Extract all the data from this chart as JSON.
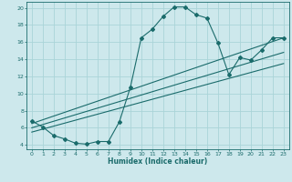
{
  "xlabel": "Humidex (Indice chaleur)",
  "bg_color": "#cde8ec",
  "line_color": "#1a6b6b",
  "grid_color": "#aad4d8",
  "xlim": [
    -0.5,
    23.5
  ],
  "ylim": [
    3.5,
    20.7
  ],
  "xticks": [
    0,
    1,
    2,
    3,
    4,
    5,
    6,
    7,
    8,
    9,
    10,
    11,
    12,
    13,
    14,
    15,
    16,
    17,
    18,
    19,
    20,
    21,
    22,
    23
  ],
  "yticks": [
    4,
    6,
    8,
    10,
    12,
    14,
    16,
    18,
    20
  ],
  "curve1_x": [
    0,
    1,
    2,
    3,
    4,
    5,
    6,
    7,
    8,
    9,
    10,
    11,
    12,
    13,
    14,
    15,
    16,
    17,
    18,
    19,
    20,
    21,
    22,
    23
  ],
  "curve1_y": [
    6.8,
    6.1,
    5.1,
    4.7,
    4.2,
    4.1,
    4.4,
    4.4,
    6.7,
    10.7,
    16.5,
    17.5,
    19.0,
    20.1,
    20.1,
    19.2,
    18.8,
    15.9,
    12.2,
    14.2,
    13.9,
    15.1,
    16.5,
    16.5
  ],
  "line1_x": [
    0,
    23
  ],
  "line1_y": [
    6.5,
    16.5
  ],
  "line2_x": [
    0,
    23
  ],
  "line2_y": [
    6.0,
    14.8
  ],
  "line3_x": [
    0,
    23
  ],
  "line3_y": [
    5.5,
    13.5
  ]
}
